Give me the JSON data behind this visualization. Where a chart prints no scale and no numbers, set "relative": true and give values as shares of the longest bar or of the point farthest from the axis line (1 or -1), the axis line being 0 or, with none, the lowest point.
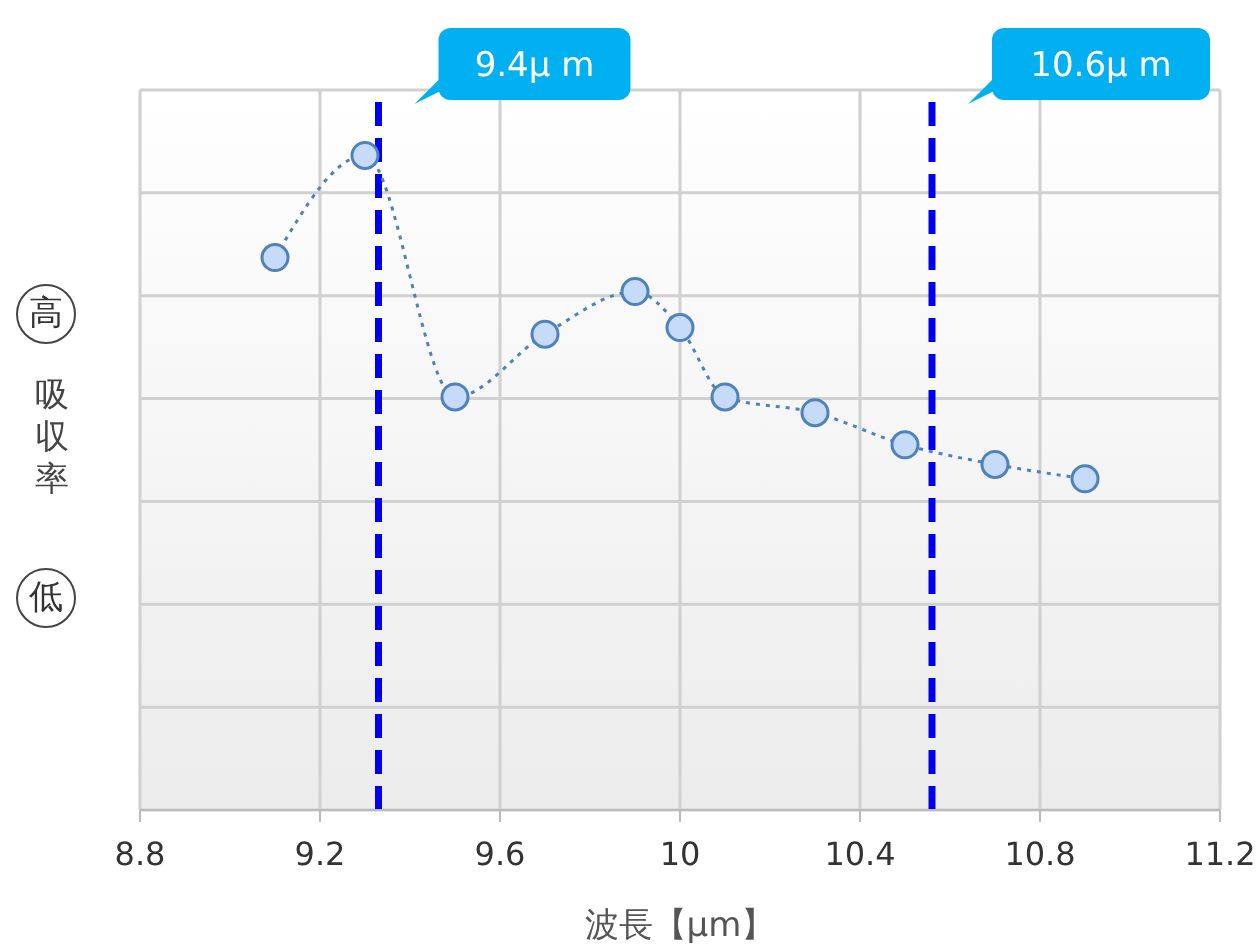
{
  "chart_data": {
    "type": "line",
    "relative": true,
    "xlabel": "波長【μm】",
    "ylabel": "吸収率",
    "annotations": [
      "高",
      "低"
    ],
    "x": [
      9.1,
      9.3,
      9.5,
      9.7,
      9.9,
      10.0,
      10.1,
      10.3,
      10.5,
      10.7,
      10.9
    ],
    "series": [
      {
        "color": "#4f81bd",
        "values": [
          0.844,
          1,
          0.631,
          0.727,
          0.792,
          0.737,
          0.631,
          0.607,
          0.558,
          0.528,
          0.506
        ]
      }
    ],
    "xlim": [
      8.8,
      11.2
    ],
    "xticks": [
      8.8,
      9.2,
      9.6,
      10,
      10.4,
      10.8,
      11.2
    ],
    "ref_lines": [
      {
        "axis": "x",
        "value": 9.33,
        "label": "9.4μ m",
        "color": "#0000ee",
        "line_style": "dashed"
      },
      {
        "axis": "x",
        "value": 10.56,
        "label": "10.6μ m",
        "color": "#0000ee",
        "line_style": "dashed"
      }
    ],
    "grid": true,
    "marker": "circle",
    "line_style": "dotted"
  }
}
